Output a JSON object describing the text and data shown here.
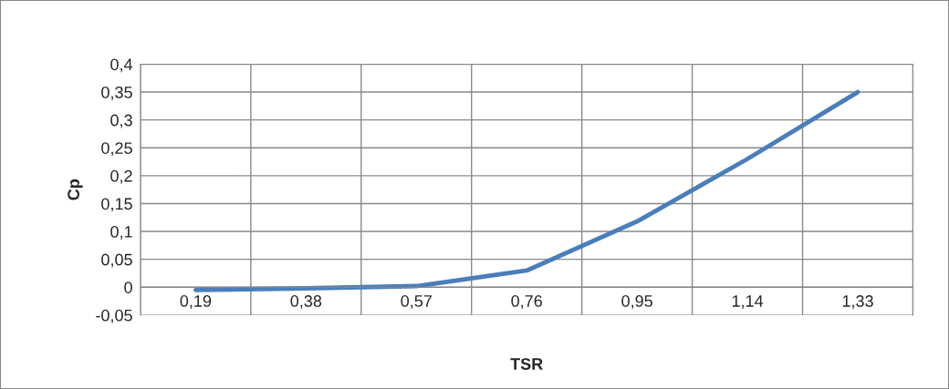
{
  "chart_data": {
    "type": "line",
    "xlabel": "TSR",
    "ylabel": "Cp",
    "categories": [
      "0,19",
      "0,38",
      "0,57",
      "0,76",
      "0,95",
      "1,14",
      "1,33"
    ],
    "series": [
      {
        "color": "#4a7ebb",
        "values": [
          -0.005,
          -0.002,
          0.002,
          0.03,
          0.118,
          0.23,
          0.35
        ]
      }
    ],
    "ylim": [
      -0.05,
      0.4
    ],
    "yticks": [
      {
        "value": -0.05,
        "label": "-0,05"
      },
      0,
      {
        "value": 0.05,
        "label": "0,05"
      },
      {
        "value": 0.1,
        "label": "0,1"
      },
      {
        "value": 0.15,
        "label": "0,15"
      },
      {
        "value": 0.2,
        "label": "0,2"
      },
      {
        "value": 0.25,
        "label": "0,25"
      },
      {
        "value": 0.3,
        "label": "0,3"
      },
      {
        "value": 0.35,
        "label": "0,35"
      },
      {
        "value": 0.4,
        "label": "0,4"
      }
    ],
    "grid": true
  }
}
